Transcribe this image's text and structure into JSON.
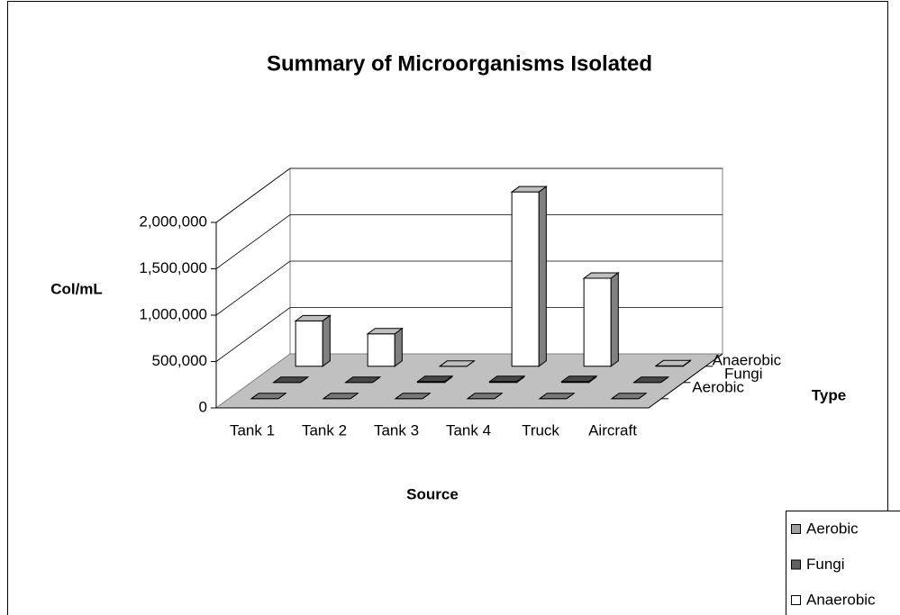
{
  "chart_data": {
    "type": "bar3d",
    "title": "Summary of Microorganisms Isolated",
    "x_label": "Source",
    "y_label": "Col/mL",
    "z_label": "Type",
    "categories": [
      "Tank 1",
      "Tank 2",
      "Tank 3",
      "Tank 4",
      "Truck",
      "Aircraft"
    ],
    "series": [
      {
        "name": "Aerobic",
        "color": "#a0a0a0",
        "values": [
          0,
          0,
          0,
          0,
          0,
          0
        ]
      },
      {
        "name": "Fungi",
        "color": "#606060",
        "values": [
          0,
          0,
          10000,
          10000,
          10000,
          0
        ]
      },
      {
        "name": "Anaerobic",
        "color": "#ffffff",
        "values": [
          490000,
          350000,
          0,
          1880000,
          950000,
          5000
        ]
      }
    ],
    "ylim": [
      0,
      2000000
    ],
    "yticks": [
      0,
      {
        "value": 500000,
        "label": "500,000"
      },
      {
        "value": 1000000,
        "label": "1,000,000"
      },
      {
        "value": 1500000,
        "label": "1,500,000"
      },
      {
        "value": 2000000,
        "label": "2,000,000"
      }
    ],
    "grid": true,
    "legend": "bottom-right"
  }
}
